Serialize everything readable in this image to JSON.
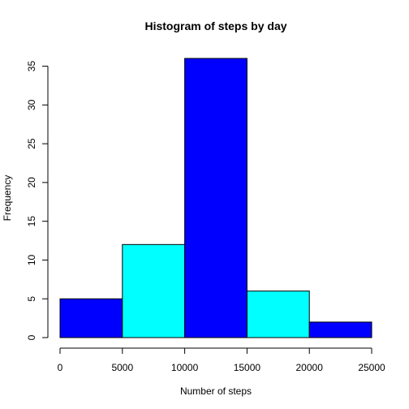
{
  "chart_data": {
    "type": "bar",
    "title": "Histogram of steps by day",
    "xlabel": "Number of steps",
    "ylabel": "Frequency",
    "bins": [
      {
        "start": 0,
        "end": 5000,
        "count": 5,
        "color": "#0000ff"
      },
      {
        "start": 5000,
        "end": 10000,
        "count": 12,
        "color": "#00ffff"
      },
      {
        "start": 10000,
        "end": 15000,
        "count": 36,
        "color": "#0000ff"
      },
      {
        "start": 15000,
        "end": 20000,
        "count": 6,
        "color": "#00ffff"
      },
      {
        "start": 20000,
        "end": 25000,
        "count": 2,
        "color": "#0000ff"
      }
    ],
    "xlim": [
      0,
      25000
    ],
    "ylim": [
      0,
      36
    ],
    "xticks": [
      0,
      5000,
      10000,
      15000,
      20000,
      25000
    ],
    "yticks": [
      0,
      5,
      10,
      15,
      20,
      25,
      30,
      35
    ],
    "grid": false,
    "legend": "none"
  }
}
